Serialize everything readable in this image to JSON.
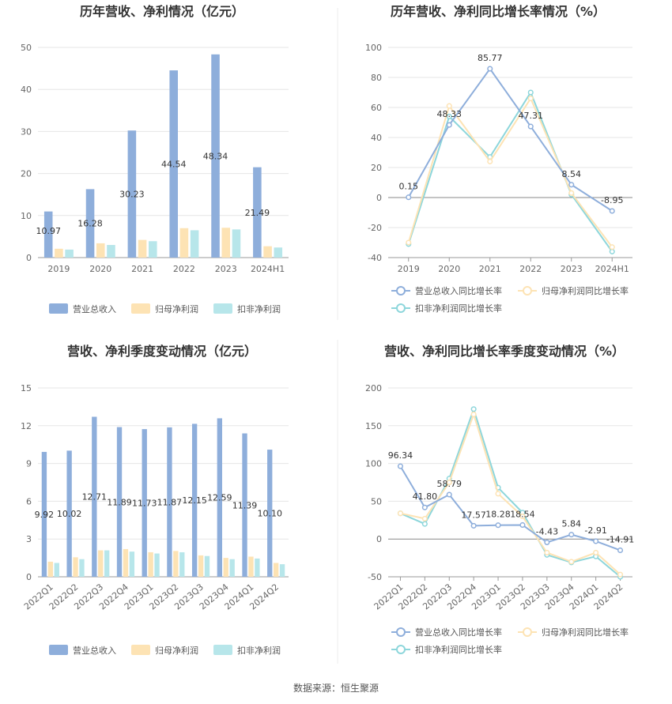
{
  "source_text": "数据来源：恒生聚源",
  "colors": {
    "revenue": "#8eaedb",
    "net_profit": "#fde3b4",
    "deducted_profit": "#8dd6db",
    "revenue_line": "#8eaedb",
    "net_line": "#fde3b4",
    "deducted_line": "#8dd6db"
  },
  "chart_data": [
    {
      "id": "annual-amount",
      "type": "bar",
      "title": "历年营收、净利情况（亿元）",
      "categories": [
        "2019",
        "2020",
        "2021",
        "2022",
        "2023",
        "2024H1"
      ],
      "ylim": [
        0,
        50
      ],
      "yticks": [
        0,
        10,
        20,
        30,
        40,
        50
      ],
      "grid": true,
      "legend_position": "bottom",
      "series": [
        {
          "name": "营业总收入",
          "color": "#8eaedb",
          "values": [
            10.97,
            16.28,
            30.23,
            44.54,
            48.34,
            21.49
          ],
          "labels": [
            "10.97",
            "16.28",
            "30.23",
            "44.54",
            "48.34",
            "21.49"
          ]
        },
        {
          "name": "归母净利润",
          "color": "#fde3b4",
          "values": [
            2.1,
            3.4,
            4.2,
            7.0,
            7.1,
            2.7
          ]
        },
        {
          "name": "扣非净利润",
          "color": "#b7e6ea",
          "values": [
            1.9,
            3.0,
            3.9,
            6.5,
            6.7,
            2.4
          ]
        }
      ]
    },
    {
      "id": "annual-growth",
      "type": "line",
      "title": "历年营收、净利同比增长率情况（%）",
      "categories": [
        "2019",
        "2020",
        "2021",
        "2022",
        "2023",
        "2024H1"
      ],
      "ylim": [
        -40,
        100
      ],
      "yticks": [
        -40,
        -20,
        0,
        20,
        40,
        60,
        80,
        100
      ],
      "grid": true,
      "legend_position": "bottom",
      "series": [
        {
          "name": "营业总收入同比增长率",
          "color": "#8eaedb",
          "values": [
            0.15,
            48.33,
            85.77,
            47.31,
            8.54,
            -8.95
          ],
          "labels": [
            "0.15",
            "48.33",
            "85.77",
            "47.31",
            "8.54",
            "-8.95"
          ]
        },
        {
          "name": "归母净利润同比增长率",
          "color": "#fde3b4",
          "values": [
            -30,
            61,
            24,
            66,
            3,
            -33
          ]
        },
        {
          "name": "扣非净利润同比增长率",
          "color": "#8dd6db",
          "values": [
            -31,
            54,
            27,
            70,
            2,
            -36
          ]
        }
      ]
    },
    {
      "id": "quarterly-amount",
      "type": "bar",
      "title": "营收、净利季度变动情况（亿元）",
      "categories": [
        "2022Q1",
        "2022Q2",
        "2022Q3",
        "2022Q4",
        "2023Q1",
        "2023Q2",
        "2023Q3",
        "2023Q4",
        "2024Q1",
        "2024Q2"
      ],
      "ylim": [
        0,
        15
      ],
      "yticks": [
        0,
        3,
        6,
        9,
        12,
        15
      ],
      "grid": true,
      "legend_position": "bottom",
      "series": [
        {
          "name": "营业总收入",
          "color": "#8eaedb",
          "values": [
            9.92,
            10.02,
            12.71,
            11.89,
            11.73,
            11.87,
            12.15,
            12.59,
            11.39,
            10.1
          ],
          "labels": [
            "9.92",
            "10.02",
            "12.71",
            "11.89",
            "11.73",
            "11.87",
            "12.15",
            "12.59",
            "11.39",
            "10.10"
          ]
        },
        {
          "name": "归母净利润",
          "color": "#fde3b4",
          "values": [
            1.2,
            1.55,
            2.1,
            2.2,
            1.95,
            2.05,
            1.7,
            1.5,
            1.6,
            1.1
          ]
        },
        {
          "name": "扣非净利润",
          "color": "#b7e6ea",
          "values": [
            1.1,
            1.4,
            2.1,
            2.0,
            1.85,
            1.95,
            1.65,
            1.4,
            1.45,
            1.0
          ]
        }
      ]
    },
    {
      "id": "quarterly-growth",
      "type": "line",
      "title": "营收、净利同比增长率季度变动情况（%）",
      "categories": [
        "2022Q1",
        "2022Q2",
        "2022Q3",
        "2022Q4",
        "2023Q1",
        "2023Q2",
        "2023Q3",
        "2023Q4",
        "2024Q1",
        "2024Q2"
      ],
      "ylim": [
        -50,
        200
      ],
      "yticks": [
        -50,
        0,
        50,
        100,
        150,
        200
      ],
      "grid": true,
      "legend_position": "bottom",
      "series": [
        {
          "name": "营业总收入同比增长率",
          "color": "#8eaedb",
          "values": [
            96.34,
            41.8,
            58.79,
            17.57,
            18.28,
            18.54,
            -4.43,
            5.84,
            -2.91,
            -14.91
          ],
          "labels": [
            "96.34",
            "41.80",
            "58.79",
            "17.57",
            "18.28",
            "18.54",
            "-4.43",
            "5.84",
            "-2.91",
            "-14.91"
          ]
        },
        {
          "name": "归母净利润同比增长率",
          "color": "#fde3b4",
          "values": [
            34,
            27,
            75,
            165,
            60,
            30,
            -18,
            -30,
            -18,
            -47
          ]
        },
        {
          "name": "扣非净利润同比增长率",
          "color": "#8dd6db",
          "values": [
            34,
            20,
            80,
            172,
            68,
            35,
            -21,
            -31,
            -23,
            -50
          ]
        }
      ]
    }
  ]
}
